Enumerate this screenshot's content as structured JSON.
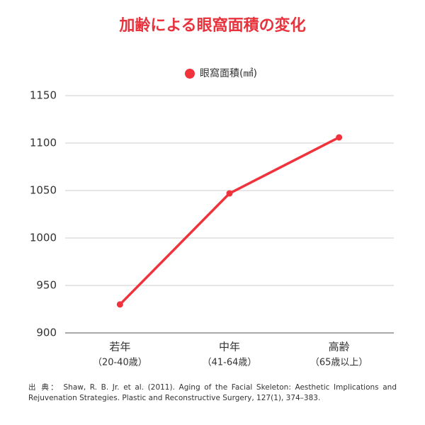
{
  "chart_data": {
    "type": "line",
    "title": "加齢による眼窩面積の変化",
    "categories": [
      "若年",
      "中年",
      "高齢"
    ],
    "category_sublabels": [
      "（20-40歳）",
      "（41-64歳）",
      "（65歳以上）"
    ],
    "series": [
      {
        "name": "眼窩面積(㎟)",
        "color": "#f0323c",
        "values": [
          930,
          1047,
          1106
        ]
      }
    ],
    "ylim": [
      900,
      1150
    ],
    "yticks": [
      900,
      950,
      1000,
      1050,
      1100,
      1150
    ],
    "grid": true,
    "legend": "top",
    "source_label": "出 典：",
    "source": "Shaw, R. B. Jr. et al. (2011). Aging of the Facial Skeleton: Aesthetic Implications and Rejuvenation Strategies. Plastic and Reconstructive Surgery, 127(1), 374–383."
  }
}
